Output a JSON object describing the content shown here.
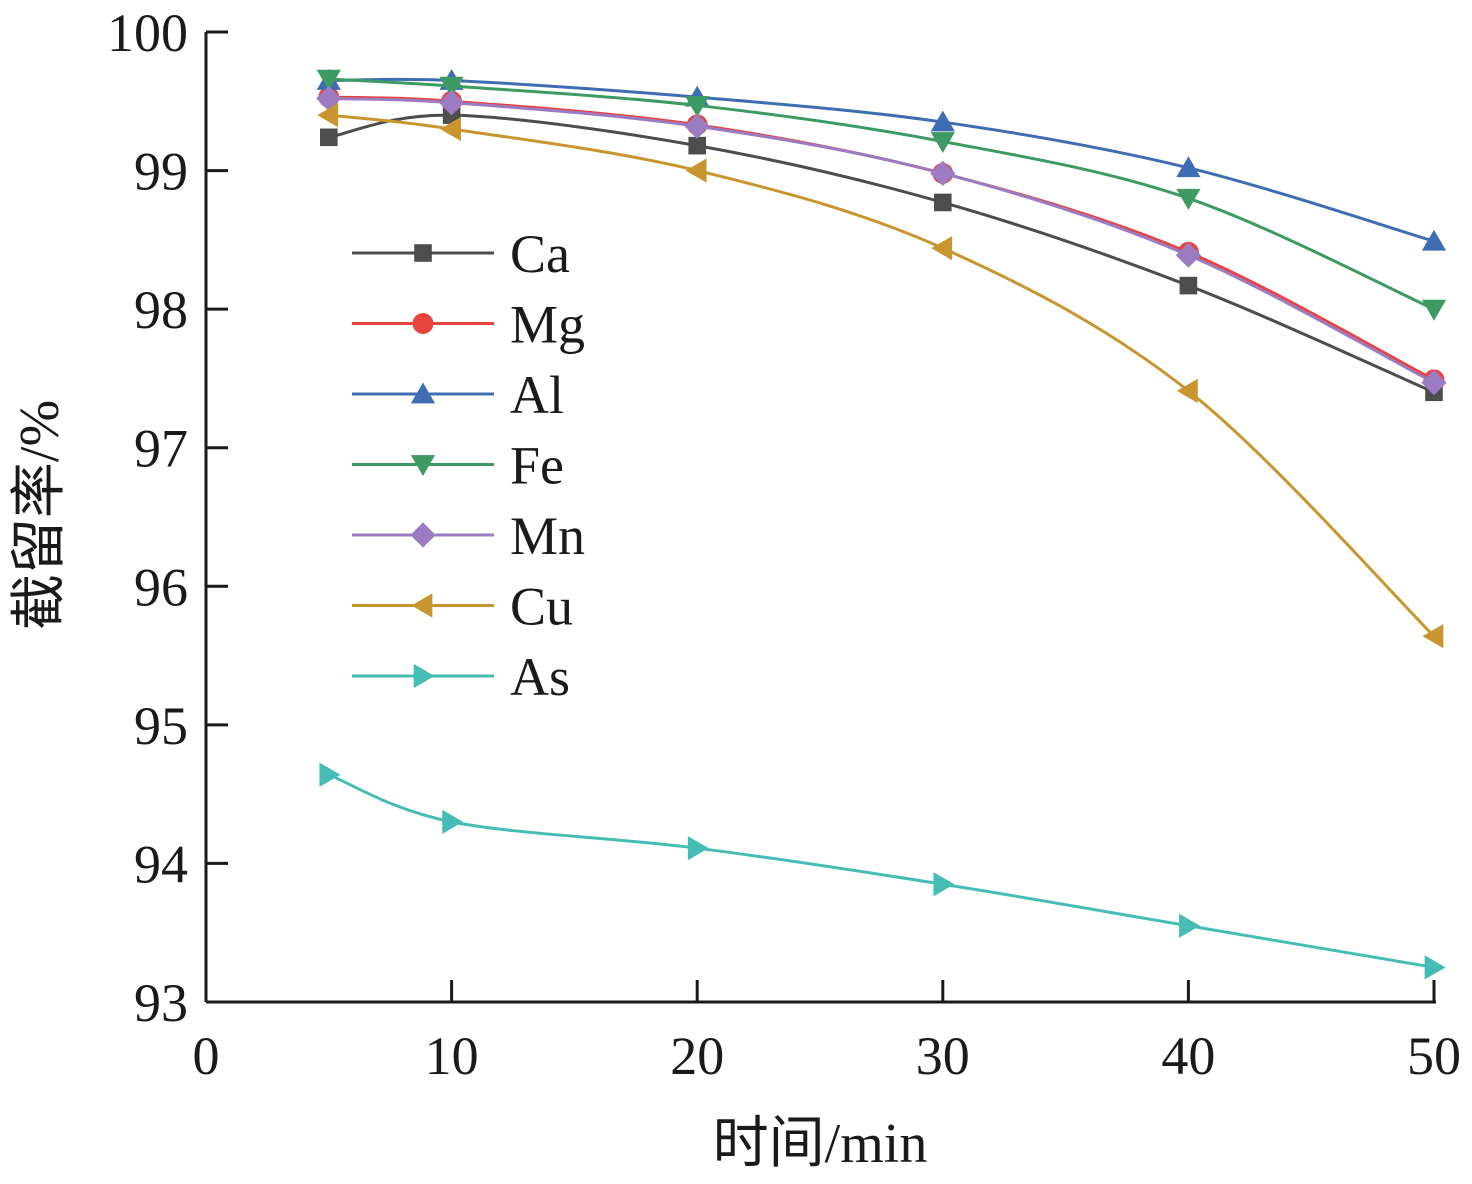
{
  "chart_data": {
    "type": "line",
    "title": "",
    "xlabel": "时间/min",
    "ylabel": "截留率/%",
    "xlim": [
      0,
      50
    ],
    "ylim": [
      93,
      100
    ],
    "xticks": [
      0,
      10,
      20,
      30,
      40,
      50
    ],
    "yticks": [
      93,
      94,
      95,
      96,
      97,
      98,
      99,
      100
    ],
    "x": [
      5,
      10,
      20,
      30,
      40,
      50
    ],
    "grid": false,
    "legend_position": "left-center",
    "series": [
      {
        "name": "Ca",
        "marker": "square",
        "color": "#4d4d4d",
        "values": [
          99.24,
          99.4,
          99.18,
          98.77,
          98.17,
          97.4
        ]
      },
      {
        "name": "Mg",
        "marker": "circle",
        "color": "#e8433f",
        "values": [
          99.53,
          99.5,
          99.33,
          98.98,
          98.41,
          97.49
        ]
      },
      {
        "name": "Al",
        "marker": "triangle-up",
        "color": "#3f6db3",
        "values": [
          99.65,
          99.65,
          99.53,
          99.35,
          99.02,
          98.49
        ]
      },
      {
        "name": "Fe",
        "marker": "triangle-down",
        "color": "#3c9a62",
        "values": [
          99.66,
          99.61,
          99.47,
          99.21,
          98.8,
          98.0
        ]
      },
      {
        "name": "Mn",
        "marker": "diamond",
        "color": "#9b7cc2",
        "values": [
          99.52,
          99.49,
          99.32,
          98.98,
          98.39,
          97.47
        ]
      },
      {
        "name": "Cu",
        "marker": "triangle-left",
        "color": "#c8952f",
        "values": [
          99.4,
          99.3,
          99.0,
          98.44,
          97.41,
          95.64
        ]
      },
      {
        "name": "As",
        "marker": "triangle-right",
        "color": "#45bdb5",
        "values": [
          94.64,
          94.3,
          94.11,
          93.85,
          93.55,
          93.25
        ]
      }
    ]
  }
}
